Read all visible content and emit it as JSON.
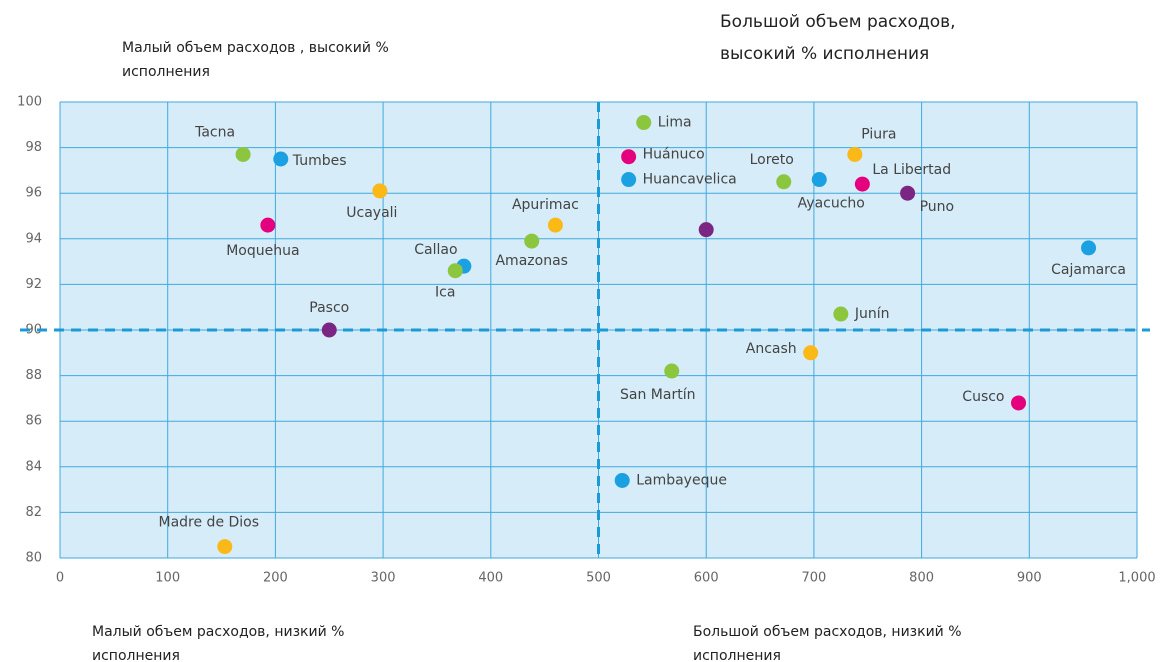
{
  "chart_data": {
    "type": "scatter",
    "annotations": [
      {
        "lines": [
          "Малый объем расходов , высокий %",
          "исполнения"
        ]
      },
      {
        "lines": [
          "Большой объем расходов,",
          "высокий % исполнения"
        ]
      },
      {
        "lines": [
          "Малый объем расходов, низкий %",
          "исполнения"
        ]
      },
      {
        "lines": [
          "Большой объем расходов, низкий %",
          "исполнения"
        ]
      }
    ],
    "xlim": [
      0,
      1000
    ],
    "xticks": [
      0,
      100,
      200,
      300,
      400,
      500,
      600,
      700,
      800,
      900,
      {
        "value": 1000,
        "label": "1,000"
      }
    ],
    "ylim": [
      80,
      100
    ],
    "yticks": [
      80,
      82,
      84,
      86,
      88,
      90,
      92,
      94,
      96,
      98,
      100
    ],
    "grid": true,
    "reference_lines": {
      "x": 500,
      "y": 90
    },
    "points": [
      {
        "name": "Tacna",
        "x": 170,
        "y": 97.7,
        "color": "#8cc63f"
      },
      {
        "name": "Tumbes",
        "x": 205,
        "y": 97.5,
        "color": "#1ba1e2"
      },
      {
        "name": "Ucayali",
        "x": 297,
        "y": 96.1,
        "color": "#fbb917"
      },
      {
        "name": "Moquehua",
        "x": 193,
        "y": 94.6,
        "color": "#e5007e"
      },
      {
        "name": "Callao",
        "x": 375,
        "y": 92.8,
        "color": "#1ba1e2"
      },
      {
        "name": "Ica",
        "x": 367,
        "y": 92.6,
        "color": "#8cc63f"
      },
      {
        "name": "Amazonas",
        "x": 438,
        "y": 93.9,
        "color": "#8cc63f"
      },
      {
        "name": "Apurimac",
        "x": 460,
        "y": 94.6,
        "color": "#fbb917"
      },
      {
        "name": "Pasco",
        "x": 250,
        "y": 90.0,
        "color": "#7b2682"
      },
      {
        "name": "Madre de Dios",
        "x": 153,
        "y": 80.5,
        "color": "#fbb917"
      },
      {
        "name": "Lima",
        "x": 542,
        "y": 99.1,
        "color": "#8cc63f"
      },
      {
        "name": "Huánuco",
        "x": 528,
        "y": 97.6,
        "color": "#e5007e"
      },
      {
        "name": "Huancavelica",
        "x": 528,
        "y": 96.6,
        "color": "#1ba1e2"
      },
      {
        "name": null,
        "x": 600,
        "y": 94.4,
        "color": "#7b2682"
      },
      {
        "name": "Loreto",
        "x": 672,
        "y": 96.5,
        "color": "#8cc63f"
      },
      {
        "name": "Ayacucho",
        "x": 705,
        "y": 96.6,
        "color": "#1ba1e2"
      },
      {
        "name": "Piura",
        "x": 738,
        "y": 97.7,
        "color": "#fbb917"
      },
      {
        "name": "La Libertad",
        "x": 745,
        "y": 96.4,
        "color": "#e5007e"
      },
      {
        "name": "Puno",
        "x": 787,
        "y": 96.0,
        "color": "#7b2682"
      },
      {
        "name": "Cajamarca",
        "x": 955,
        "y": 93.6,
        "color": "#1ba1e2"
      },
      {
        "name": "Junín",
        "x": 725,
        "y": 90.7,
        "color": "#8cc63f"
      },
      {
        "name": "Ancash",
        "x": 697,
        "y": 89.0,
        "color": "#fbb917"
      },
      {
        "name": "San Martín",
        "x": 568,
        "y": 88.2,
        "color": "#8cc63f"
      },
      {
        "name": "Cusco",
        "x": 890,
        "y": 86.8,
        "color": "#e5007e"
      },
      {
        "name": "Lambayeque",
        "x": 522,
        "y": 83.4,
        "color": "#1ba1e2"
      }
    ]
  }
}
